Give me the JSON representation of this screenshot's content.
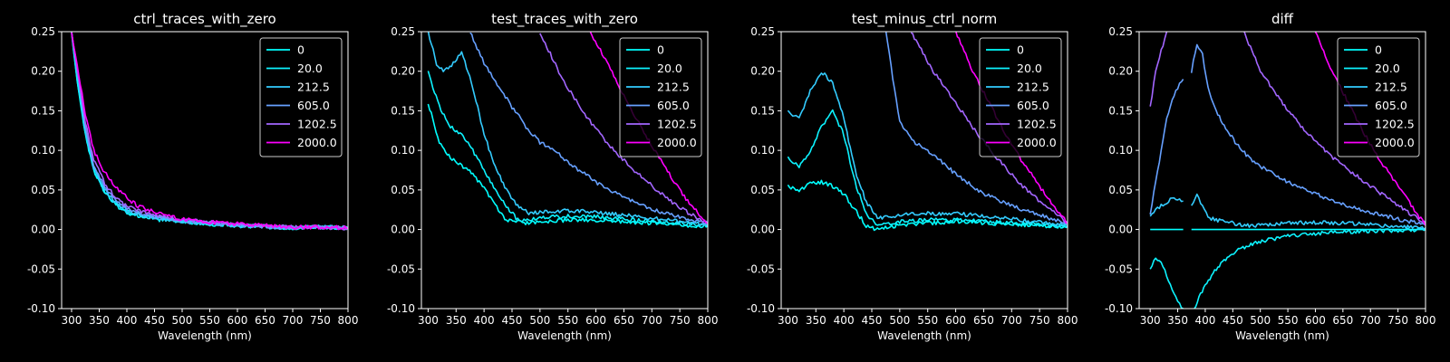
{
  "chart_data": [
    {
      "type": "line",
      "title": "ctrl_traces_with_zero",
      "xlabel": "Wavelength (nm)",
      "ylabel": "",
      "xlim": [
        282,
        800
      ],
      "ylim": [
        -0.1,
        0.25
      ],
      "xticks": [
        300,
        350,
        400,
        450,
        500,
        550,
        600,
        650,
        700,
        750,
        800
      ],
      "yticks": [
        -0.1,
        -0.05,
        0.0,
        0.05,
        0.1,
        0.15,
        0.2,
        0.25
      ],
      "legend_position": "top-right",
      "grid": false,
      "series": [
        {
          "name": "0",
          "color": "#00ffff",
          "x": [
            300,
            310,
            325,
            340,
            360,
            380,
            400,
            450,
            500,
            550,
            600,
            650,
            700,
            750,
            800
          ],
          "y": [
            0.25,
            0.19,
            0.12,
            0.075,
            0.048,
            0.032,
            0.022,
            0.014,
            0.01,
            0.007,
            0.005,
            0.004,
            0.002,
            0.003,
            0.002
          ]
        },
        {
          "name": "20.0",
          "color": "#0cf3ff",
          "x": [
            300,
            310,
            325,
            340,
            360,
            380,
            400,
            450,
            500,
            550,
            600,
            650,
            700,
            750,
            800
          ],
          "y": [
            0.25,
            0.19,
            0.12,
            0.074,
            0.047,
            0.031,
            0.021,
            0.013,
            0.009,
            0.007,
            0.005,
            0.003,
            0.002,
            0.003,
            0.002
          ]
        },
        {
          "name": "212.5",
          "color": "#33ccff",
          "x": [
            300,
            310,
            325,
            340,
            360,
            380,
            400,
            450,
            500,
            550,
            600,
            650,
            700,
            750,
            800
          ],
          "y": [
            0.25,
            0.2,
            0.125,
            0.078,
            0.05,
            0.034,
            0.024,
            0.015,
            0.01,
            0.007,
            0.005,
            0.004,
            0.002,
            0.003,
            0.002
          ]
        },
        {
          "name": "605.0",
          "color": "#66a0ff",
          "x": [
            300,
            310,
            325,
            340,
            360,
            380,
            400,
            450,
            500,
            550,
            600,
            650,
            700,
            750,
            800
          ],
          "y": [
            0.25,
            0.2,
            0.13,
            0.082,
            0.054,
            0.037,
            0.026,
            0.016,
            0.011,
            0.008,
            0.006,
            0.004,
            0.002,
            0.003,
            0.002
          ]
        },
        {
          "name": "1202.5",
          "color": "#a366ff",
          "x": [
            300,
            310,
            325,
            340,
            360,
            380,
            400,
            450,
            500,
            550,
            600,
            650,
            700,
            750,
            800
          ],
          "y": [
            0.25,
            0.205,
            0.135,
            0.088,
            0.058,
            0.04,
            0.029,
            0.018,
            0.012,
            0.009,
            0.006,
            0.004,
            0.003,
            0.003,
            0.002
          ]
        },
        {
          "name": "2000.0",
          "color": "#ff00ff",
          "x": [
            300,
            310,
            325,
            340,
            360,
            380,
            400,
            420,
            450,
            500,
            550,
            600,
            650,
            700,
            750,
            800
          ],
          "y": [
            0.25,
            0.21,
            0.145,
            0.1,
            0.072,
            0.053,
            0.04,
            0.03,
            0.022,
            0.013,
            0.009,
            0.007,
            0.005,
            0.003,
            0.003,
            0.002
          ]
        }
      ]
    },
    {
      "type": "line",
      "title": "test_traces_with_zero",
      "xlabel": "Wavelength (nm)",
      "ylabel": "",
      "xlim": [
        288,
        800
      ],
      "ylim": [
        -0.1,
        0.25
      ],
      "xticks": [
        300,
        350,
        400,
        450,
        500,
        550,
        600,
        650,
        700,
        750,
        800
      ],
      "yticks": [
        -0.1,
        -0.05,
        0.0,
        0.05,
        0.1,
        0.15,
        0.2,
        0.25
      ],
      "legend_position": "top-right",
      "grid": false,
      "series": [
        {
          "name": "0",
          "color": "#00ffff",
          "x": [
            300,
            320,
            340,
            360,
            380,
            400,
            420,
            440,
            460,
            480,
            500,
            550,
            600,
            650,
            700,
            750,
            800
          ],
          "y": [
            0.16,
            0.11,
            0.09,
            0.08,
            0.07,
            0.052,
            0.03,
            0.012,
            0.01,
            0.008,
            0.01,
            0.012,
            0.012,
            0.01,
            0.008,
            0.006,
            0.004
          ]
        },
        {
          "name": "20.0",
          "color": "#0cf3ff",
          "x": [
            300,
            320,
            340,
            360,
            380,
            400,
            420,
            440,
            460,
            480,
            500,
            550,
            600,
            650,
            700,
            750,
            800
          ],
          "y": [
            0.2,
            0.155,
            0.13,
            0.12,
            0.1,
            0.075,
            0.05,
            0.03,
            0.012,
            0.012,
            0.015,
            0.017,
            0.016,
            0.013,
            0.01,
            0.008,
            0.005
          ]
        },
        {
          "name": "212.5",
          "color": "#33ccff",
          "x": [
            300,
            315,
            330,
            345,
            360,
            380,
            400,
            420,
            440,
            460,
            480,
            500,
            550,
            600,
            650,
            700,
            750,
            800
          ],
          "y": [
            0.25,
            0.21,
            0.2,
            0.21,
            0.225,
            0.18,
            0.12,
            0.08,
            0.05,
            0.03,
            0.02,
            0.022,
            0.024,
            0.022,
            0.018,
            0.014,
            0.01,
            0.006
          ]
        },
        {
          "name": "605.0",
          "color": "#66a0ff",
          "x": [
            375,
            400,
            450,
            475,
            500,
            525,
            550,
            600,
            650,
            700,
            750,
            800
          ],
          "y": [
            0.25,
            0.21,
            0.155,
            0.13,
            0.11,
            0.1,
            0.085,
            0.06,
            0.04,
            0.025,
            0.015,
            0.008
          ]
        },
        {
          "name": "1202.5",
          "color": "#a366ff",
          "x": [
            500,
            540,
            580,
            620,
            660,
            700,
            740,
            780,
            800
          ],
          "y": [
            0.25,
            0.19,
            0.145,
            0.11,
            0.08,
            0.055,
            0.032,
            0.015,
            0.008
          ]
        },
        {
          "name": "2000.0",
          "color": "#ff00ff",
          "x": [
            590,
            620,
            650,
            680,
            710,
            740,
            770,
            800
          ],
          "y": [
            0.25,
            0.21,
            0.17,
            0.13,
            0.095,
            0.06,
            0.03,
            0.008
          ]
        }
      ]
    },
    {
      "type": "line",
      "title": "test_minus_ctrl_norm",
      "xlabel": "Wavelength (nm)",
      "ylabel": "",
      "xlim": [
        288,
        800
      ],
      "ylim": [
        -0.1,
        0.25
      ],
      "xticks": [
        300,
        350,
        400,
        450,
        500,
        550,
        600,
        650,
        700,
        750,
        800
      ],
      "yticks": [
        -0.1,
        -0.05,
        0.0,
        0.05,
        0.1,
        0.15,
        0.2,
        0.25
      ],
      "legend_position": "top-right",
      "grid": false,
      "series": [
        {
          "name": "0",
          "color": "#00ffff",
          "x": [
            300,
            320,
            340,
            360,
            380,
            400,
            420,
            440,
            460,
            480,
            500,
            550,
            600,
            650,
            700,
            750,
            800
          ],
          "y": [
            0.055,
            0.05,
            0.058,
            0.06,
            0.055,
            0.045,
            0.025,
            0.005,
            0.0,
            0.003,
            0.006,
            0.008,
            0.01,
            0.008,
            0.007,
            0.005,
            0.003
          ]
        },
        {
          "name": "20.0",
          "color": "#0cf3ff",
          "x": [
            300,
            320,
            340,
            360,
            380,
            400,
            420,
            440,
            460,
            480,
            500,
            550,
            600,
            650,
            700,
            750,
            800
          ],
          "y": [
            0.09,
            0.08,
            0.1,
            0.13,
            0.15,
            0.12,
            0.06,
            0.02,
            0.005,
            0.006,
            0.01,
            0.012,
            0.012,
            0.01,
            0.008,
            0.006,
            0.004
          ]
        },
        {
          "name": "212.5",
          "color": "#33ccff",
          "x": [
            300,
            320,
            340,
            360,
            380,
            400,
            420,
            440,
            460,
            480,
            500,
            550,
            600,
            650,
            700,
            750,
            800
          ],
          "y": [
            0.15,
            0.14,
            0.175,
            0.2,
            0.185,
            0.14,
            0.075,
            0.035,
            0.015,
            0.015,
            0.018,
            0.02,
            0.02,
            0.017,
            0.013,
            0.009,
            0.005
          ]
        },
        {
          "name": "605.0",
          "color": "#66a0ff",
          "x": [
            475,
            500,
            525,
            550,
            600,
            650,
            700,
            750,
            800
          ],
          "y": [
            0.25,
            0.135,
            0.11,
            0.1,
            0.07,
            0.045,
            0.03,
            0.018,
            0.008
          ]
        },
        {
          "name": "1202.5",
          "color": "#a366ff",
          "x": [
            520,
            560,
            600,
            640,
            680,
            720,
            760,
            800
          ],
          "y": [
            0.25,
            0.2,
            0.16,
            0.12,
            0.085,
            0.055,
            0.03,
            0.008
          ]
        },
        {
          "name": "2000.0",
          "color": "#ff00ff",
          "x": [
            600,
            630,
            660,
            690,
            720,
            750,
            780,
            800
          ],
          "y": [
            0.25,
            0.2,
            0.16,
            0.12,
            0.085,
            0.055,
            0.025,
            0.008
          ]
        }
      ]
    },
    {
      "type": "line",
      "title": "diff",
      "xlabel": "Wavelength (nm)",
      "ylabel": "",
      "xlim": [
        280,
        800
      ],
      "ylim": [
        -0.1,
        0.25
      ],
      "xticks": [
        300,
        350,
        400,
        450,
        500,
        550,
        600,
        650,
        700,
        750,
        800
      ],
      "yticks": [
        -0.1,
        -0.05,
        0.0,
        0.05,
        0.1,
        0.15,
        0.2,
        0.25
      ],
      "legend_position": "top-right",
      "grid": false,
      "series": [
        {
          "name": "0",
          "color": "#00ffff",
          "segments": [
            {
              "x": [
                300,
                360
              ],
              "y": [
                0.0,
                0.0
              ]
            },
            {
              "x": [
                375,
                800
              ],
              "y": [
                0.0,
                0.0
              ]
            }
          ]
        },
        {
          "name": "20.0",
          "color": "#0cf3ff",
          "segments": [
            {
              "x": [
                300,
                310,
                320,
                330,
                340,
                350,
                360
              ],
              "y": [
                -0.05,
                -0.035,
                -0.04,
                -0.06,
                -0.075,
                -0.09,
                -0.1
              ]
            },
            {
              "x": [
                380,
                400,
                420,
                440,
                460,
                480,
                500,
                550,
                600,
                650,
                700,
                750,
                800
              ],
              "y": [
                -0.1,
                -0.07,
                -0.05,
                -0.035,
                -0.025,
                -0.02,
                -0.015,
                -0.008,
                -0.005,
                -0.003,
                -0.002,
                -0.001,
                0.0
              ]
            }
          ]
        },
        {
          "name": "212.5",
          "color": "#33ccff",
          "segments": [
            {
              "x": [
                300,
                310,
                320,
                330,
                340,
                350,
                360
              ],
              "y": [
                0.015,
                0.025,
                0.03,
                0.035,
                0.04,
                0.038,
                0.036
              ]
            },
            {
              "x": [
                375,
                385,
                395,
                405,
                420,
                440,
                460,
                480,
                500,
                550,
                600,
                650,
                700,
                750,
                800
              ],
              "y": [
                0.03,
                0.045,
                0.03,
                0.015,
                0.012,
                0.01,
                0.007,
                0.005,
                0.006,
                0.008,
                0.009,
                0.008,
                0.006,
                0.004,
                0.002
              ]
            }
          ]
        },
        {
          "name": "605.0",
          "color": "#66a0ff",
          "segments": [
            {
              "x": [
                300,
                310,
                320,
                330,
                340,
                350,
                360
              ],
              "y": [
                0.02,
                0.06,
                0.1,
                0.14,
                0.165,
                0.18,
                0.19
              ]
            },
            {
              "x": [
                375,
                385,
                395,
                405,
                420,
                440,
                460,
                480,
                500,
                550,
                600,
                650,
                700,
                750,
                800
              ],
              "y": [
                0.2,
                0.235,
                0.22,
                0.18,
                0.15,
                0.125,
                0.105,
                0.09,
                0.08,
                0.06,
                0.045,
                0.032,
                0.022,
                0.013,
                0.006
              ]
            }
          ]
        },
        {
          "name": "1202.5",
          "color": "#a366ff",
          "segments": [
            {
              "x": [
                300,
                310,
                320,
                330
              ],
              "y": [
                0.155,
                0.2,
                0.225,
                0.25
              ]
            },
            {
              "x": [
                470,
                500,
                550,
                600,
                650,
                700,
                750,
                800
              ],
              "y": [
                0.25,
                0.2,
                0.15,
                0.11,
                0.08,
                0.055,
                0.03,
                0.008
              ]
            }
          ]
        },
        {
          "name": "2000.0",
          "color": "#ff00ff",
          "segments": [
            {
              "x": [
                600,
                630,
                660,
                690,
                720,
                750,
                780,
                800
              ],
              "y": [
                0.25,
                0.2,
                0.16,
                0.12,
                0.085,
                0.055,
                0.025,
                0.005
              ]
            }
          ]
        }
      ]
    }
  ]
}
